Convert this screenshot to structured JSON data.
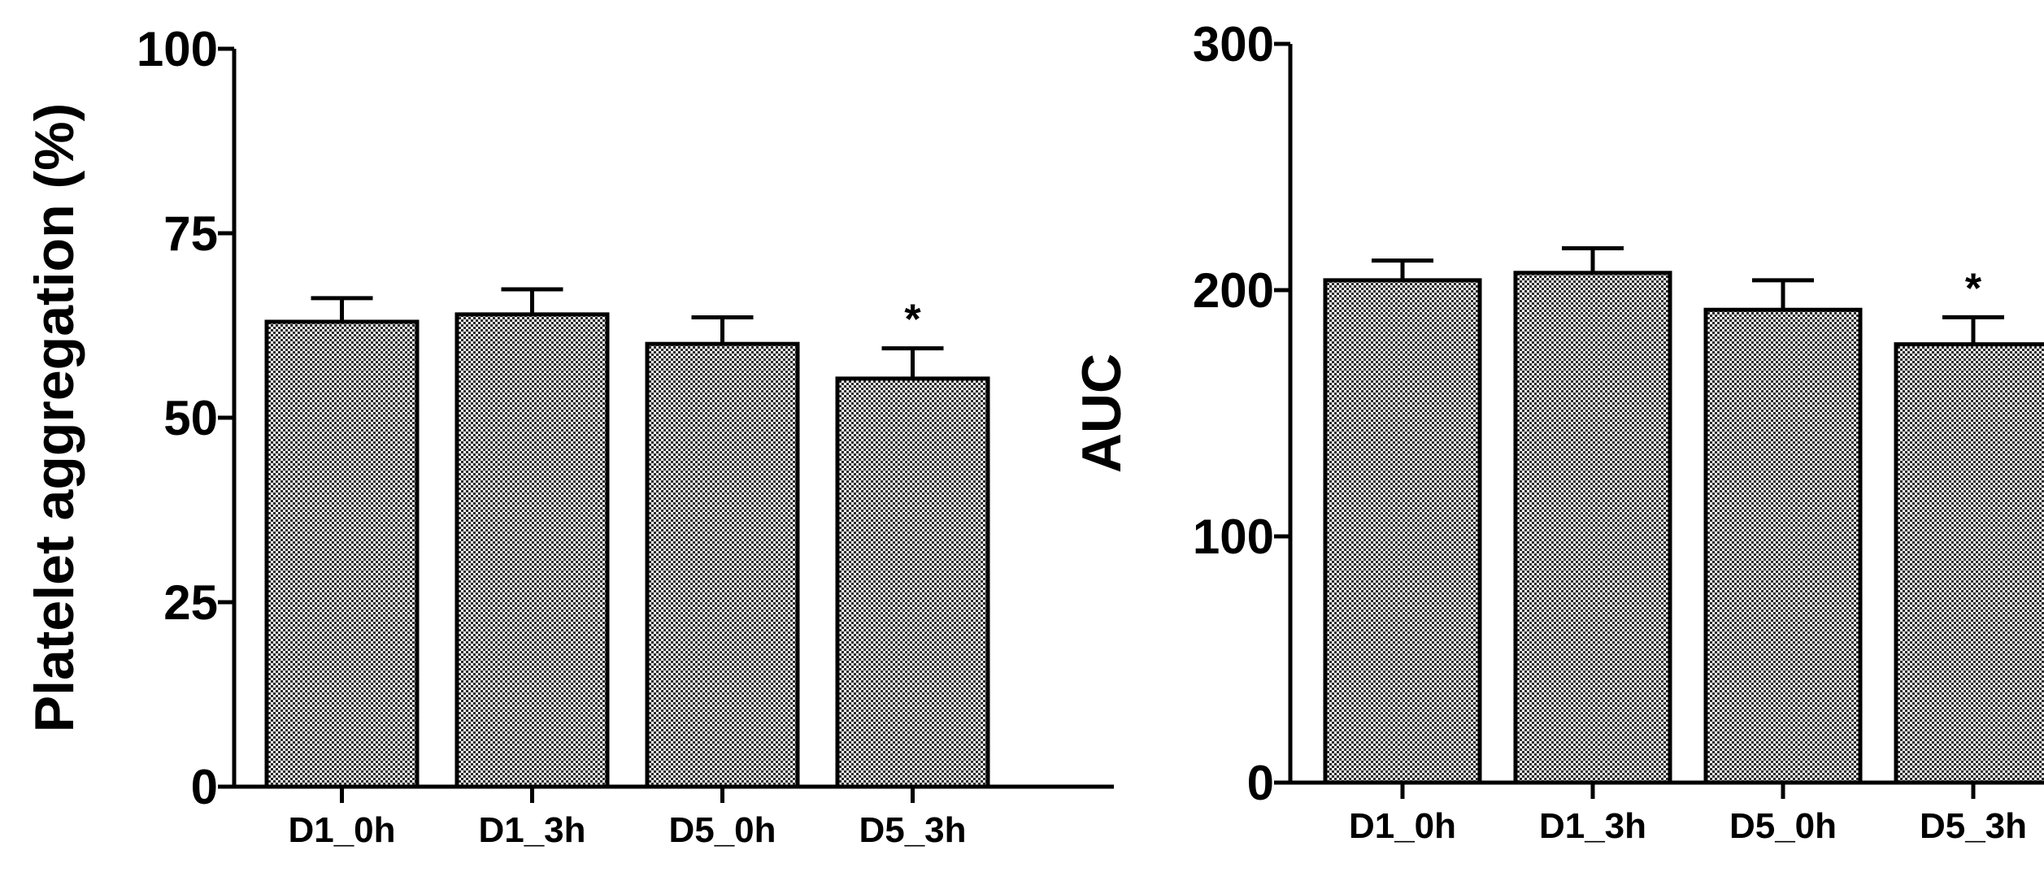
{
  "chart_data": [
    {
      "type": "bar",
      "categories": [
        "D1_0h",
        "D1_3h",
        "D5_0h",
        "D5_3h"
      ],
      "values": [
        63,
        64,
        60,
        55.3
      ],
      "errors": [
        3.2,
        3.4,
        3.6,
        4.1
      ],
      "annotations": [
        "",
        "",
        "",
        "*"
      ],
      "ylabel": "Platelet aggregation (%)",
      "xlabel": "",
      "ylim": [
        0,
        100
      ],
      "yticks": [
        "0",
        "25",
        "50",
        "75",
        "100"
      ],
      "grid": false
    },
    {
      "type": "bar",
      "categories": [
        "D1_0h",
        "D1_3h",
        "D5_0h",
        "D5_3h"
      ],
      "values": [
        204,
        207,
        192,
        178
      ],
      "errors": [
        8,
        10,
        12,
        11
      ],
      "annotations": [
        "",
        "",
        "",
        "*"
      ],
      "ylabel": "AUC",
      "xlabel": "",
      "ylim": [
        0,
        300
      ],
      "yticks": [
        "0",
        "100",
        "200",
        "300"
      ],
      "grid": false
    }
  ]
}
